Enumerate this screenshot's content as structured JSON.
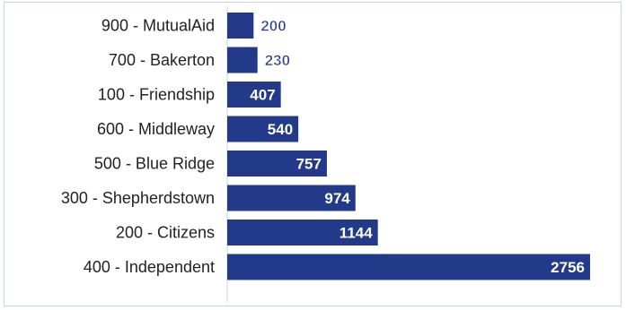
{
  "chart_data": {
    "type": "bar",
    "orientation": "horizontal",
    "categories": [
      "900 - MutualAid",
      "700 - Bakerton",
      "100 - Friendship",
      "600 - Middleway",
      "500 - Blue Ridge",
      "300 - Shepherdstown",
      "200 - Citizens",
      "400 - Independent"
    ],
    "values": [
      200,
      230,
      407,
      540,
      757,
      974,
      1144,
      2756
    ],
    "title": "",
    "xlabel": "",
    "ylabel": "",
    "xlim": [
      0,
      2756
    ],
    "grid": false,
    "legend": "none",
    "bar_color": "#233a8a",
    "label_color_inside": "#ffffff",
    "label_color_outside": "#233a8a"
  }
}
